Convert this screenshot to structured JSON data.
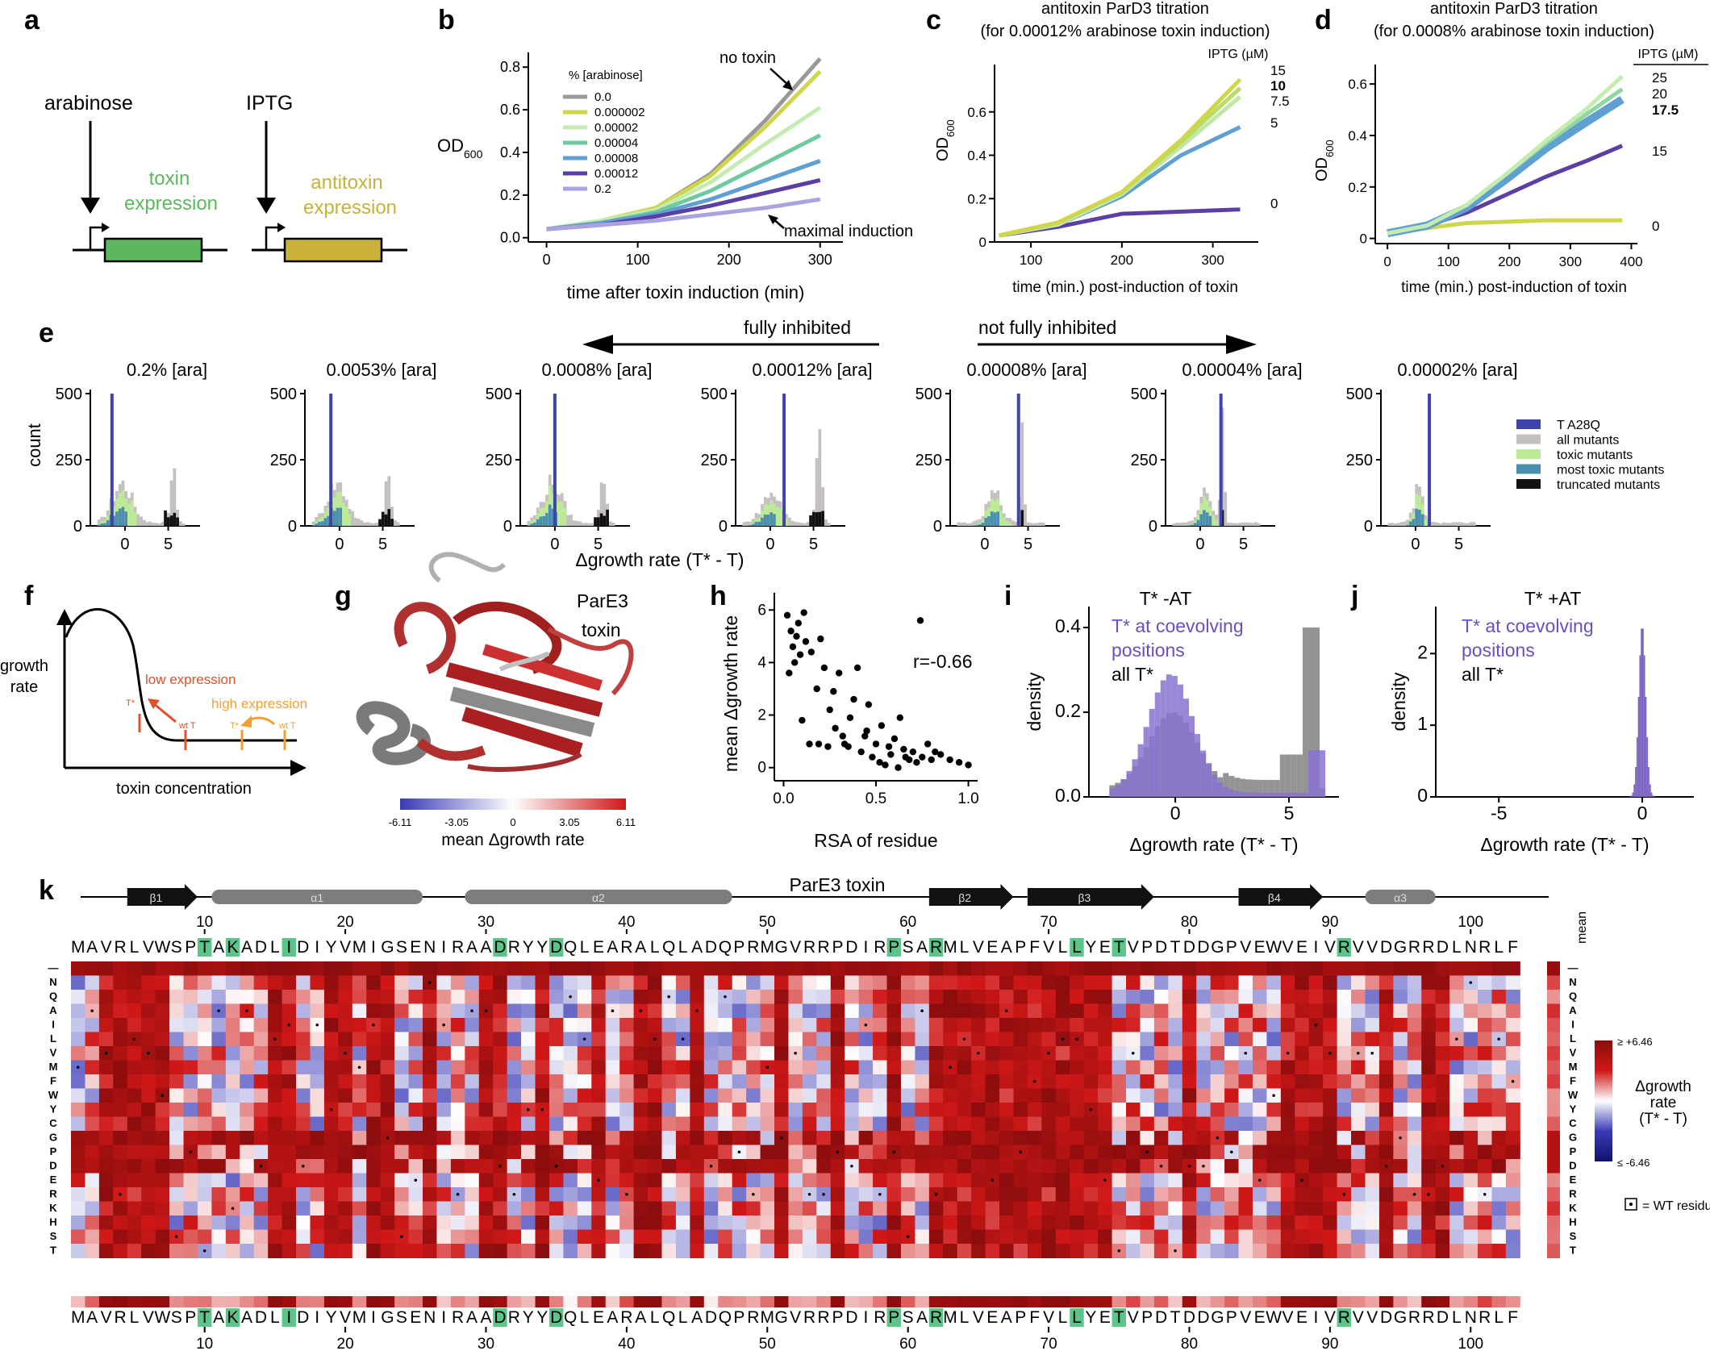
{
  "panel_letters": [
    "a",
    "b",
    "c",
    "d",
    "e",
    "f",
    "g",
    "h",
    "i",
    "j",
    "k"
  ],
  "a": {
    "arabinose": "arabinose",
    "iptg": "IPTG",
    "toxin": "toxin",
    "toxin2": "expression",
    "antitoxin": "antitoxin",
    "antitoxin2": "expression",
    "colors": {
      "toxin": "#5cb85c",
      "antitoxin": "#c9b13a"
    }
  },
  "b": {
    "legend_title": "% [arabinose]",
    "no_toxin": "no toxin",
    "maximal": "maximal induction"
  },
  "c": {
    "title1": "antitoxin ParD3 titration",
    "title2": "(for 0.00012% arabinose toxin induction)",
    "legend_title": "IPTG (µM)"
  },
  "d": {
    "title1": "antitoxin ParD3 titration",
    "title2": "(for 0.0008% arabinose toxin induction)",
    "legend_title": "IPTG (µM)"
  },
  "e": {
    "fully": "fully inhibited",
    "not_fully": "not fully inhibited",
    "xlabel": "Δgrowth rate (T* - T)",
    "ylabel": "count"
  },
  "f": {
    "ylabel1": "growth",
    "ylabel2": "rate",
    "xlabel": "toxin concentration",
    "low": "low expression",
    "high": "high expression",
    "tstar": "T*",
    "wtT": "wt T"
  },
  "g": {
    "title1": "ParE3",
    "title2": "toxin",
    "cbar_label": "mean Δgrowth rate",
    "ticks": [
      "-6.11",
      "-3.05",
      "0",
      "3.05",
      "6.11"
    ]
  },
  "i": {
    "title": "T* -AT",
    "leg1": "T* at coevolving",
    "leg2": "positions",
    "leg3": "all T*"
  },
  "j": {
    "title": "T* +AT",
    "leg1": "T* at coevolving",
    "leg2": "positions",
    "leg3": "all T*"
  },
  "k": {
    "seq": "MAVRLVWSPTAKADLIDIYVMIGSENIRAADRYYDQLEARALQLADQPRMGVRRPDIRPSARMLVEAPFVLLYETVPDTDDGPVEWVEIVRVVDGRRDLNRLF",
    "highlight_positions": [
      10,
      12,
      16,
      31,
      35,
      59,
      62,
      72,
      75,
      91
    ],
    "residues": [
      "—",
      "N",
      "Q",
      "A",
      "I",
      "L",
      "V",
      "M",
      "F",
      "W",
      "Y",
      "C",
      "G",
      "P",
      "D",
      "E",
      "R",
      "K",
      "H",
      "S",
      "T"
    ],
    "title": "ParE3 toxin",
    "mean": "mean",
    "cbar_top": "≥ +6.46",
    "cbar_bottom": "≤ -6.46",
    "cbar_label1": "Δgrowth",
    "cbar_label2": "rate",
    "cbar_label3": "(T* - T)",
    "wt_note": "= WT residue",
    "ss": [
      {
        "label": "β1",
        "type": "beta",
        "start": 5,
        "end": 9
      },
      {
        "label": "α1",
        "type": "helix",
        "start": 11,
        "end": 25
      },
      {
        "label": "α2",
        "type": "helix",
        "start": 29,
        "end": 47
      },
      {
        "label": "β2",
        "type": "beta",
        "start": 62,
        "end": 67
      },
      {
        "label": "β3",
        "type": "beta",
        "start": 69,
        "end": 77
      },
      {
        "label": "β4",
        "type": "beta",
        "start": 84,
        "end": 89
      },
      {
        "label": "α3",
        "type": "helix",
        "start": 93,
        "end": 97
      }
    ]
  },
  "chart_data": [
    {
      "panel": "b",
      "type": "line",
      "xlabel": "time after toxin induction (min)",
      "ylabel": "OD600",
      "xlim": [
        -20,
        325
      ],
      "ylim": [
        -0.02,
        0.85
      ],
      "xticks": [
        0,
        100,
        200,
        300
      ],
      "yticks": [
        0.0,
        0.2,
        0.4,
        0.6,
        0.8
      ],
      "x": [
        0,
        60,
        120,
        180,
        240,
        300
      ],
      "series": [
        {
          "name": "0.0",
          "color": "#999999",
          "values": [
            0.04,
            0.08,
            0.14,
            0.3,
            0.55,
            0.84
          ]
        },
        {
          "name": "0.000002",
          "color": "#cfd64a",
          "values": [
            0.04,
            0.08,
            0.14,
            0.29,
            0.52,
            0.78
          ]
        },
        {
          "name": "0.00002",
          "color": "#c5ecb0",
          "values": [
            0.04,
            0.08,
            0.13,
            0.26,
            0.44,
            0.61
          ]
        },
        {
          "name": "0.00004",
          "color": "#6fcaa0",
          "values": [
            0.04,
            0.07,
            0.12,
            0.22,
            0.35,
            0.48
          ]
        },
        {
          "name": "0.00008",
          "color": "#5f9fd2",
          "values": [
            0.04,
            0.07,
            0.11,
            0.18,
            0.27,
            0.36
          ]
        },
        {
          "name": "0.00012",
          "color": "#5c3fa4",
          "values": [
            0.04,
            0.06,
            0.1,
            0.15,
            0.21,
            0.27
          ]
        },
        {
          "name": "0.2",
          "color": "#a9a4e0",
          "values": [
            0.04,
            0.06,
            0.08,
            0.11,
            0.14,
            0.18
          ]
        }
      ]
    },
    {
      "panel": "c",
      "type": "line",
      "xlabel": "time (min.) post-induction of toxin",
      "ylabel": "OD600",
      "xlim": [
        60,
        350
      ],
      "ylim": [
        0,
        0.8
      ],
      "xticks": [
        100,
        200,
        300
      ],
      "yticks": [
        0,
        0.2,
        0.4,
        0.6
      ],
      "x": [
        65,
        130,
        200,
        265,
        330
      ],
      "series": [
        {
          "name": "15",
          "color": "#cfd64a",
          "values": [
            0.03,
            0.09,
            0.23,
            0.47,
            0.75
          ]
        },
        {
          "name": "10",
          "color": "#b8dc66",
          "values": [
            0.03,
            0.09,
            0.23,
            0.46,
            0.71
          ]
        },
        {
          "name": "7.5",
          "color": "#bfe8a8",
          "values": [
            0.03,
            0.08,
            0.22,
            0.44,
            0.67
          ]
        },
        {
          "name": "5",
          "color": "#5f9fd2",
          "values": [
            0.03,
            0.08,
            0.21,
            0.4,
            0.53
          ]
        },
        {
          "name": "0",
          "color": "#5c3fa4",
          "values": [
            0.03,
            0.07,
            0.13,
            0.14,
            0.15
          ]
        }
      ]
    },
    {
      "panel": "d",
      "type": "line",
      "xlabel": "time (min.) post-induction of toxin",
      "ylabel": "OD600",
      "xlim": [
        -20,
        410
      ],
      "ylim": [
        -0.02,
        0.66
      ],
      "xticks": [
        0,
        100,
        200,
        300,
        400
      ],
      "yticks": [
        0,
        0.2,
        0.4,
        0.6
      ],
      "x": [
        0,
        65,
        130,
        195,
        260,
        325,
        385
      ],
      "series": [
        {
          "name": "25",
          "color": "#c5ecb0",
          "values": [
            0.02,
            0.05,
            0.13,
            0.25,
            0.38,
            0.5,
            0.63
          ]
        },
        {
          "name": "20",
          "color": "#8fd6a0",
          "values": [
            0.02,
            0.05,
            0.13,
            0.25,
            0.37,
            0.48,
            0.58
          ]
        },
        {
          "name": "17.5",
          "color": "#5f9fd2",
          "values": [
            0.02,
            0.05,
            0.12,
            0.23,
            0.35,
            0.45,
            0.54
          ]
        },
        {
          "name": "15",
          "color": "#5c3fa4",
          "values": [
            0.02,
            0.05,
            0.1,
            0.17,
            0.24,
            0.3,
            0.36
          ]
        },
        {
          "name": "0",
          "color": "#cfd64a",
          "values": [
            0.02,
            0.04,
            0.06,
            0.065,
            0.07,
            0.07,
            0.07
          ]
        }
      ]
    },
    {
      "panel": "e",
      "type": "bar",
      "titles": [
        "0.2% [ara]",
        "0.0053% [ara]",
        "0.0008% [ara]",
        "0.00012% [ara]",
        "0.00008% [ara]",
        "0.00004% [ara]",
        "0.00002% [ara]"
      ],
      "xlabel": "Δgrowth rate (T* - T)",
      "ylabel": "count",
      "ylim": [
        0,
        500
      ],
      "yticks": [
        0,
        250,
        500
      ],
      "xticks": [
        0,
        5
      ],
      "t_a28q_positions": [
        -1.5,
        -1.0,
        0.0,
        1.6,
        3.9,
        2.4,
        1.6
      ],
      "legend": [
        {
          "name": "T A28Q",
          "color": "#3f45a8"
        },
        {
          "name": "all mutants",
          "color": "#c4c0c0"
        },
        {
          "name": "toxic mutants",
          "color": "#bdea96"
        },
        {
          "name": "most toxic mutants",
          "color": "#4a8fb0"
        },
        {
          "name": "truncated mutants",
          "color": "#111111"
        }
      ]
    },
    {
      "panel": "h",
      "type": "scatter",
      "xlabel": "RSA of residue",
      "ylabel": "mean Δgrowth rate",
      "xlim": [
        -0.05,
        1.05
      ],
      "ylim": [
        -0.5,
        6.5
      ],
      "xticks": [
        0.0,
        0.5,
        1.0
      ],
      "yticks": [
        0,
        2,
        4,
        6
      ],
      "annotation": "r=-0.66",
      "x": [
        0.02,
        0.04,
        0.05,
        0.07,
        0.09,
        0.03,
        0.06,
        0.08,
        0.12,
        0.15,
        0.18,
        0.2,
        0.22,
        0.25,
        0.28,
        0.3,
        0.32,
        0.35,
        0.38,
        0.4,
        0.42,
        0.45,
        0.48,
        0.5,
        0.52,
        0.55,
        0.58,
        0.6,
        0.62,
        0.65,
        0.68,
        0.7,
        0.72,
        0.75,
        0.78,
        0.8,
        0.85,
        0.9,
        0.95,
        1.0,
        0.1,
        0.14,
        0.24,
        0.36,
        0.44,
        0.46,
        0.53,
        0.57,
        0.63,
        0.66,
        0.74,
        0.82,
        0.33,
        0.27,
        0.19,
        0.11
      ],
      "y": [
        5.8,
        5.2,
        4.6,
        5.0,
        4.3,
        3.6,
        4.0,
        5.5,
        4.8,
        4.4,
        3.0,
        4.9,
        3.8,
        2.2,
        1.5,
        3.6,
        1.2,
        0.8,
        2.6,
        3.8,
        0.6,
        1.4,
        0.4,
        0.9,
        0.2,
        0.1,
        0.5,
        1.1,
        0.0,
        0.7,
        0.3,
        0.6,
        0.2,
        0.4,
        0.9,
        0.3,
        0.5,
        0.3,
        0.2,
        0.1,
        1.8,
        0.9,
        0.8,
        1.9,
        1.2,
        2.4,
        1.6,
        0.8,
        1.9,
        0.4,
        5.6,
        0.6,
        0.9,
        2.9,
        0.9,
        5.9
      ]
    },
    {
      "panel": "i",
      "type": "bar",
      "xlabel": "Δgrowth rate (T* - T)",
      "ylabel": "density",
      "xlim": [
        -3.8,
        7.2
      ],
      "ylim": [
        0,
        0.44
      ],
      "xticks": [
        0,
        5
      ],
      "yticks": [
        0.0,
        0.2,
        0.4
      ],
      "series": [
        {
          "name": "T* at coevolving positions",
          "color": "#a596dc"
        },
        {
          "name": "all T*",
          "color": "#888888"
        }
      ]
    },
    {
      "panel": "j",
      "type": "bar",
      "xlabel": "Δgrowth rate (T* - T)",
      "ylabel": "density",
      "xlim": [
        -7.2,
        1.8
      ],
      "ylim": [
        0,
        2.6
      ],
      "xticks": [
        -5,
        0
      ],
      "yticks": [
        0,
        1,
        2
      ]
    },
    {
      "panel": "k",
      "type": "heatmap",
      "title": "ParE3 toxin",
      "xticks": [
        10,
        20,
        30,
        40,
        50,
        60,
        70,
        80,
        90,
        100
      ],
      "clim": [
        -6.46,
        6.46
      ]
    }
  ]
}
